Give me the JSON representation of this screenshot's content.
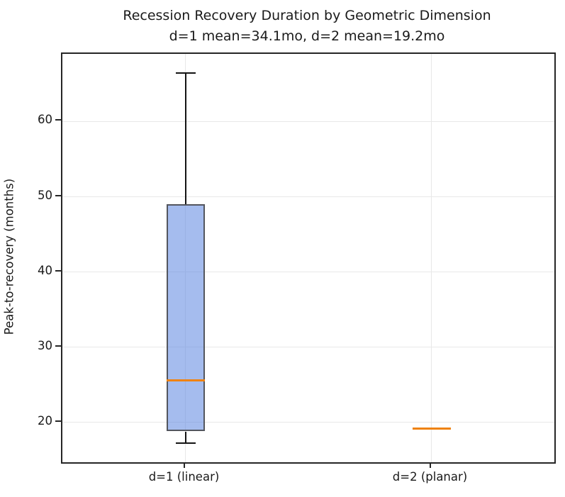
{
  "chart_data": {
    "type": "boxplot",
    "title": "Recession Recovery Duration by Geometric Dimension",
    "subtitle": "d=1 mean=34.1mo, d=2 mean=19.2mo",
    "ylabel": "Peak-to-recovery (months)",
    "xlabel": "",
    "categories": [
      "d=1 (linear)",
      "d=2 (planar)"
    ],
    "boxes": [
      {
        "label": "d=1 (linear)",
        "whislo": 17.2,
        "q1": 18.8,
        "med": 25.6,
        "q3": 49.0,
        "whishi": 66.5,
        "mean": 34.1
      },
      {
        "label": "d=2 (planar)",
        "whislo": 19.2,
        "q1": 19.2,
        "med": 19.2,
        "q3": 19.2,
        "whishi": 19.2,
        "mean": 19.2
      }
    ],
    "yticks": [
      20,
      30,
      40,
      50,
      60
    ],
    "ylim": [
      14.7,
      69.0
    ],
    "grid": true,
    "legend": "none",
    "colors": {
      "box_fill": "rgba(100,140,225,0.58)",
      "box_edge": "#53565e",
      "median": "#ef820e",
      "whisker": "#141414",
      "grid": "#e8e8e8",
      "spine": "#262626",
      "text": "#1a1a1a",
      "background": "#ffffff"
    }
  }
}
